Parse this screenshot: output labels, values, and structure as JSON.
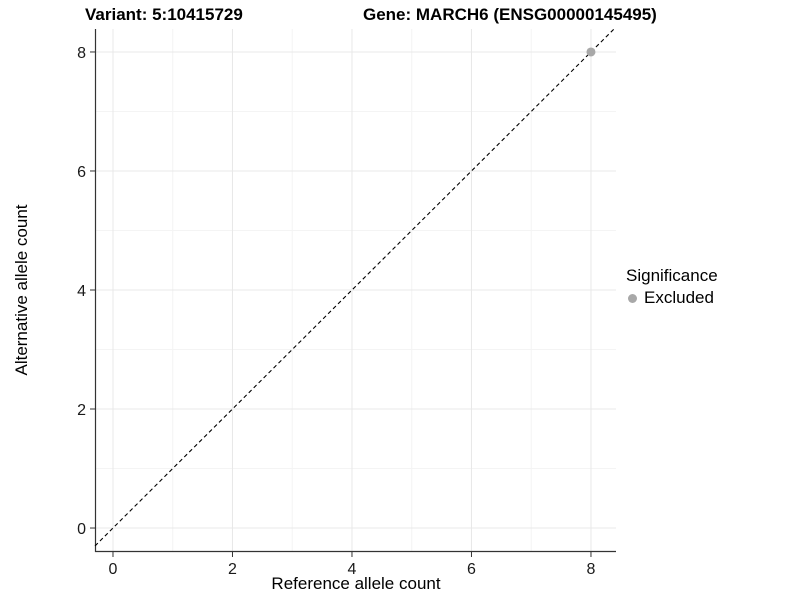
{
  "titles": {
    "variant": "Variant: 5:10415729",
    "gene": "Gene: MARCH6 (ENSG00000145495)"
  },
  "legend": {
    "title": "Significance",
    "position": "right",
    "items": [
      {
        "label": "Excluded",
        "color": "#a8a8a8"
      }
    ]
  },
  "colors": {
    "axis_line": "#333333",
    "tick_mark": "#333333",
    "tick_label": "#1a1a1a",
    "grid_major": "#e8e8e8",
    "grid_minor": "#f4f4f4",
    "point": "#a8a8a8",
    "reference_line": "#000000",
    "background": "#ffffff"
  },
  "chart_data": {
    "type": "scatter",
    "title_left": "Variant: 5:10415729",
    "title_right": "Gene: MARCH6 (ENSG00000145495)",
    "xlabel": "Reference allele count",
    "ylabel": "Alternative allele count",
    "xlim": [
      -0.301,
      8.419
    ],
    "ylim": [
      -0.403,
      8.386
    ],
    "x_ticks": [
      0,
      2,
      4,
      6,
      8
    ],
    "y_ticks": [
      0,
      2,
      4,
      6,
      8
    ],
    "x_minor_gridlines": [
      1,
      3,
      5,
      7
    ],
    "y_minor_gridlines": [
      1,
      3,
      5,
      7
    ],
    "grid": true,
    "legend_position": "right",
    "series": [
      {
        "name": "Excluded",
        "color": "#a8a8a8",
        "marker": "circle",
        "points": [
          {
            "x": 8,
            "y": 8
          }
        ]
      }
    ],
    "reference_line": {
      "name": "identity-line",
      "slope": 1,
      "intercept": 0,
      "style": "dashed",
      "color": "#000000"
    }
  }
}
